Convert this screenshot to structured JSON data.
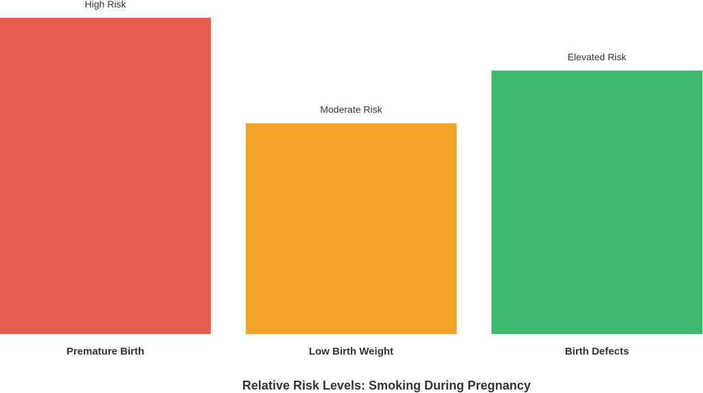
{
  "chart_data": {
    "type": "bar",
    "title": "Relative Risk Levels: Smoking During Pregnancy",
    "xlabel": "",
    "ylabel": "",
    "categories": [
      "Premature Birth",
      "Low Birth Weight",
      "Birth Defects"
    ],
    "values": [
      3,
      2,
      2.5
    ],
    "data_labels": [
      "High Risk",
      "Moderate Risk",
      "Elevated Risk"
    ],
    "colors": [
      "#e85e4e",
      "#f2a42a",
      "#3cb86f"
    ],
    "ylim": [
      0,
      3
    ],
    "grid": false,
    "legend": "none"
  }
}
